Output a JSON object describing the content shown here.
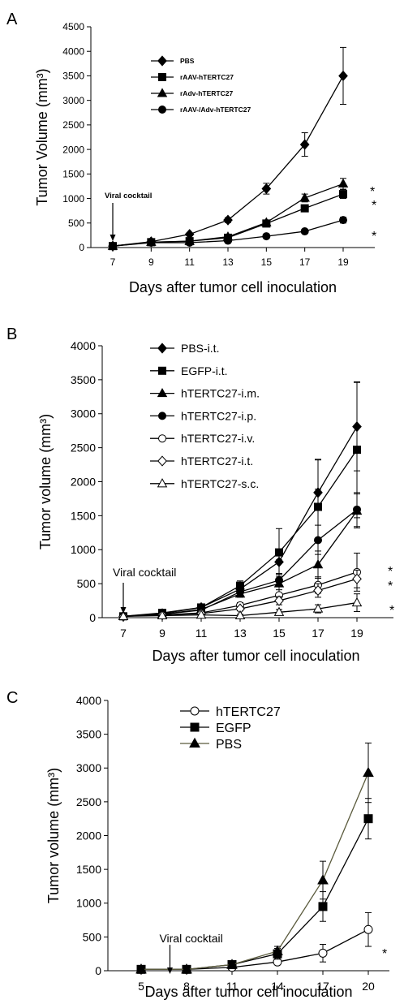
{
  "figure": {
    "panels": [
      "A",
      "B",
      "C"
    ]
  },
  "chart_data": [
    {
      "panel_label": "A",
      "type": "line",
      "ylabel": "Tumor Volume (mm³)",
      "xlabel": "Days after tumor cell inoculation",
      "x": [
        7,
        9,
        11,
        13,
        15,
        17,
        19
      ],
      "xticks": [
        "7",
        "9",
        "11",
        "13",
        "15",
        "17",
        "19"
      ],
      "ylim": [
        0,
        4500
      ],
      "yticks": [
        0,
        500,
        1000,
        1500,
        2000,
        2500,
        3000,
        3500,
        4000,
        4500
      ],
      "grid": false,
      "legend_position": "top-left",
      "annotation": "Viral cocktail",
      "annotation_x": 7,
      "significance": [
        "*",
        "*",
        "*"
      ],
      "series": [
        {
          "name": "PBS",
          "marker": "diamond",
          "values": [
            30,
            120,
            270,
            560,
            1200,
            2100,
            3500
          ],
          "errors": [
            0,
            20,
            30,
            50,
            110,
            240,
            580
          ]
        },
        {
          "name": "rAAV-hTERTC27",
          "marker": "square",
          "values": [
            30,
            110,
            130,
            200,
            490,
            800,
            1090
          ],
          "errors": [
            0,
            15,
            20,
            30,
            50,
            70,
            90
          ]
        },
        {
          "name": "rAdv-hTERTC27",
          "marker": "triangle",
          "values": [
            30,
            110,
            130,
            220,
            510,
            1010,
            1300
          ],
          "errors": [
            0,
            15,
            20,
            30,
            50,
            80,
            110
          ]
        },
        {
          "name": "rAAV-/Adv-hTERTC27",
          "marker": "circle",
          "values": [
            30,
            100,
            100,
            140,
            230,
            330,
            560
          ],
          "errors": [
            0,
            10,
            15,
            20,
            30,
            40,
            60
          ]
        }
      ]
    },
    {
      "panel_label": "B",
      "type": "line",
      "ylabel": "Tumor volume (mm³)",
      "xlabel": "Days after tumor cell inoculation",
      "x": [
        7,
        9,
        11,
        13,
        15,
        17,
        19
      ],
      "xticks": [
        "7",
        "9",
        "11",
        "13",
        "15",
        "17",
        "19"
      ],
      "ylim": [
        0,
        4000
      ],
      "yticks": [
        0,
        500,
        1000,
        1500,
        2000,
        2500,
        3000,
        3500,
        4000
      ],
      "grid": false,
      "legend_position": "top-left",
      "annotation": "Viral cocktail",
      "annotation_x": 7,
      "significance": [
        "*",
        "*",
        "*"
      ],
      "series": [
        {
          "name": "PBS-i.t.",
          "marker": "diamond",
          "values": [
            20,
            60,
            150,
            420,
            820,
            1840,
            2810
          ],
          "errors": [
            0,
            15,
            20,
            60,
            180,
            480,
            650
          ]
        },
        {
          "name": "EGFP-i.t.",
          "marker": "square",
          "values": [
            20,
            70,
            150,
            470,
            960,
            1630,
            2470
          ],
          "errors": [
            0,
            15,
            20,
            70,
            350,
            700,
            1000
          ]
        },
        {
          "name": "hTERTC27-i.m.",
          "marker": "triangle",
          "values": [
            20,
            50,
            120,
            350,
            500,
            780,
            1570
          ],
          "errors": [
            0,
            10,
            20,
            50,
            150,
            200,
            250
          ]
        },
        {
          "name": "hTERTC27-i.p.",
          "marker": "circle",
          "values": [
            20,
            50,
            110,
            380,
            550,
            1140,
            1590
          ],
          "errors": [
            0,
            10,
            20,
            50,
            300,
            750,
            250
          ]
        },
        {
          "name": "hTERTC27-i.v.",
          "marker": "circle-open",
          "values": [
            20,
            40,
            70,
            180,
            330,
            480,
            670
          ],
          "errors": [
            0,
            10,
            15,
            40,
            80,
            120,
            280
          ]
        },
        {
          "name": "hTERTC27-i.t.",
          "marker": "diamond-open",
          "values": [
            20,
            40,
            60,
            130,
            250,
            400,
            570
          ],
          "errors": [
            0,
            10,
            15,
            30,
            60,
            100,
            130
          ]
        },
        {
          "name": "hTERTC27-s.c.",
          "marker": "triangle-open",
          "values": [
            20,
            30,
            40,
            30,
            80,
            130,
            220
          ],
          "errors": [
            0,
            10,
            10,
            20,
            40,
            60,
            130
          ]
        }
      ]
    },
    {
      "panel_label": "C",
      "type": "line",
      "ylabel": "Tumor volume (mm³)",
      "xlabel": "Days after tumor cell inoculation",
      "x": [
        5,
        8,
        11,
        14,
        17,
        20
      ],
      "xticks": [
        "5",
        "8",
        "11",
        "14",
        "17",
        "20"
      ],
      "ylim": [
        0,
        4000
      ],
      "yticks": [
        0,
        500,
        1000,
        1500,
        2000,
        2500,
        3000,
        3500,
        4000
      ],
      "grid": false,
      "legend_position": "top-left",
      "annotation": "Viral cocktail",
      "annotation_x": 6.9,
      "significance": [
        "*"
      ],
      "series": [
        {
          "name": "hTERTC27",
          "marker": "circle-open",
          "values": [
            20,
            20,
            50,
            130,
            260,
            610
          ],
          "errors": [
            0,
            5,
            15,
            30,
            130,
            250
          ]
        },
        {
          "name": "EGFP",
          "marker": "square",
          "values": [
            20,
            20,
            90,
            250,
            950,
            2250
          ],
          "errors": [
            0,
            5,
            20,
            80,
            220,
            300
          ]
        },
        {
          "name": "PBS",
          "marker": "triangle",
          "values": [
            20,
            20,
            90,
            290,
            1340,
            2930
          ],
          "errors": [
            0,
            5,
            20,
            70,
            280,
            440
          ]
        }
      ]
    }
  ]
}
